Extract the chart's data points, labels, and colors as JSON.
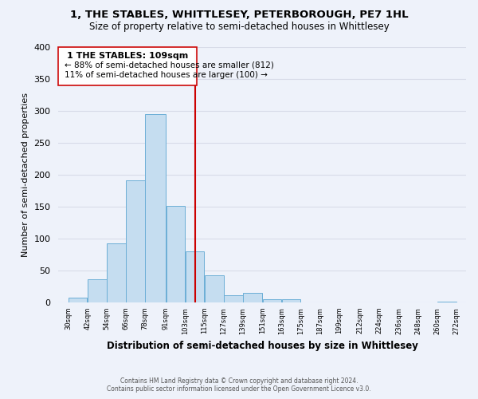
{
  "title": "1, THE STABLES, WHITTLESEY, PETERBOROUGH, PE7 1HL",
  "subtitle": "Size of property relative to semi-detached houses in Whittlesey",
  "xlabel": "Distribution of semi-detached houses by size in Whittlesey",
  "ylabel": "Number of semi-detached properties",
  "bar_color": "#c5ddf0",
  "bar_edge_color": "#6baed6",
  "highlight_color": "#cc0000",
  "background_color": "#eef2fa",
  "grid_color": "#d8dce8",
  "bin_edges": [
    30,
    42,
    54,
    66,
    78,
    91,
    103,
    115,
    127,
    139,
    151,
    163,
    175,
    187,
    199,
    212,
    224,
    236,
    248,
    260,
    272
  ],
  "bin_labels": [
    "30sqm",
    "42sqm",
    "54sqm",
    "66sqm",
    "78sqm",
    "91sqm",
    "103sqm",
    "115sqm",
    "127sqm",
    "139sqm",
    "151sqm",
    "163sqm",
    "175sqm",
    "187sqm",
    "199sqm",
    "212sqm",
    "224sqm",
    "236sqm",
    "248sqm",
    "260sqm",
    "272sqm"
  ],
  "counts": [
    8,
    37,
    93,
    192,
    295,
    151,
    80,
    43,
    11,
    15,
    5,
    5,
    0,
    0,
    0,
    0,
    0,
    0,
    0,
    2
  ],
  "property_line_value": 109,
  "annotation_title": "1 THE STABLES: 109sqm",
  "annotation_line1": "← 88% of semi-detached houses are smaller (812)",
  "annotation_line2": "11% of semi-detached houses are larger (100) →",
  "footer_line1": "Contains HM Land Registry data © Crown copyright and database right 2024.",
  "footer_line2": "Contains public sector information licensed under the Open Government Licence v3.0.",
  "ylim": [
    0,
    400
  ],
  "yticks": [
    0,
    50,
    100,
    150,
    200,
    250,
    300,
    350,
    400
  ]
}
